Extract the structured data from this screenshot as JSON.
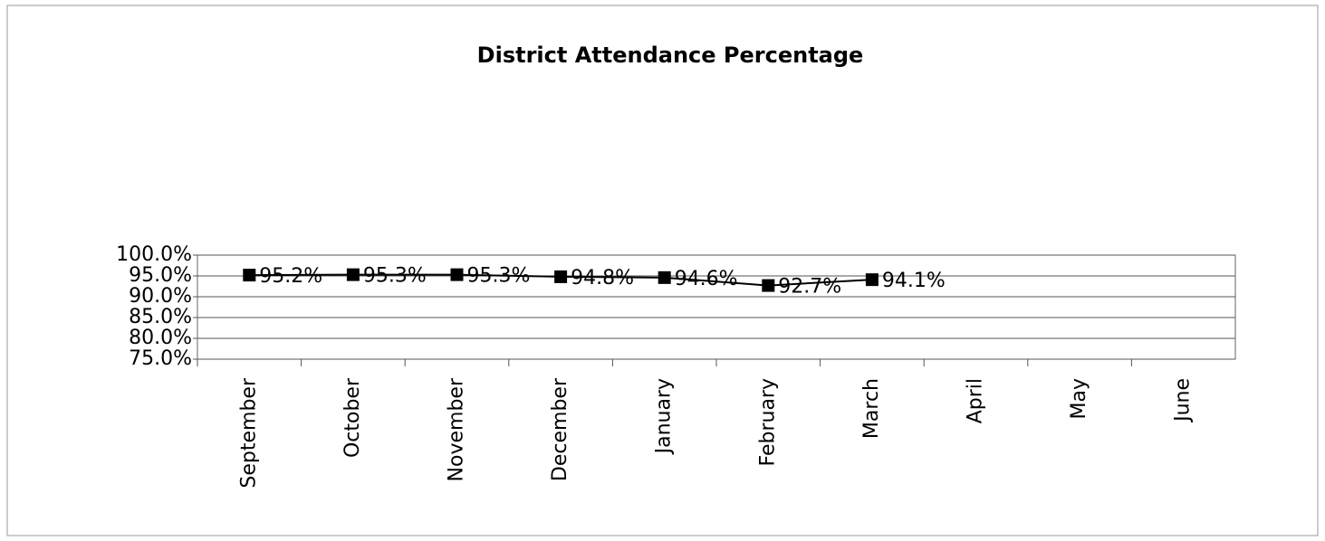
{
  "chart_data": {
    "type": "line",
    "title": "District Attendance Percentage",
    "categories": [
      "September",
      "October",
      "November",
      "December",
      "January",
      "February",
      "March",
      "April",
      "May",
      "June"
    ],
    "series": [
      {
        "name": "District",
        "color": "#000000",
        "values": [
          95.2,
          95.3,
          95.3,
          94.8,
          94.6,
          92.7,
          94.1,
          null,
          null,
          null
        ],
        "value_labels": [
          "95.2%",
          "95.3%",
          "95.3%",
          "94.8%",
          "94.6%",
          "92.7%",
          "94.1%",
          null,
          null,
          null
        ]
      }
    ],
    "ylim": [
      75,
      100
    ],
    "yticks": [
      {
        "value": 75,
        "label": "75.0%"
      },
      {
        "value": 80,
        "label": "80.0%"
      },
      {
        "value": 85,
        "label": "85.0%"
      },
      {
        "value": 90,
        "label": "90.0%"
      },
      {
        "value": 95,
        "label": "95.0%"
      },
      {
        "value": 100,
        "label": "100.0%"
      }
    ],
    "grid": true
  }
}
